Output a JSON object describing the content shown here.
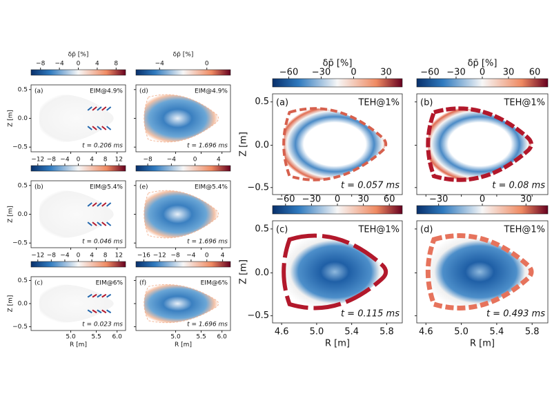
{
  "left": {
    "y_label": "Z [m]",
    "x_label": "R [m]",
    "yticks": [
      "0.5",
      "0.0",
      "−0.5"
    ],
    "xticks": [
      "5.0",
      "5.5",
      "6.0"
    ],
    "cbar_title": "δp̄ [%]",
    "panels": [
      {
        "label": "(a)",
        "tag": "EIM@4.9%",
        "time": "t = 0.206 ms",
        "cbar_ticks": [
          "−8",
          "−4",
          "0",
          "4",
          "8"
        ]
      },
      {
        "label": "(b)",
        "tag": "EIM@5.4%",
        "time": "t = 0.046 ms",
        "cbar_ticks": [
          "−12",
          "−8",
          "−4",
          "0",
          "4",
          "8",
          "12"
        ]
      },
      {
        "label": "(c)",
        "tag": "EIM@6%",
        "time": "t = 0.023 ms",
        "cbar_ticks": [
          "−12",
          "−8",
          "−4",
          "0",
          "4",
          "8",
          "12"
        ]
      },
      {
        "label": "(d)",
        "tag": "EIM@4.9%",
        "time": "t = 1.696 ms",
        "cbar_ticks": [
          "−4",
          "0"
        ]
      },
      {
        "label": "(e)",
        "tag": "EIM@5.4%",
        "time": "t = 1.696 ms",
        "cbar_ticks": [
          "−8",
          "−4",
          "0",
          "4"
        ]
      },
      {
        "label": "(f)",
        "tag": "EIM@6%",
        "time": "t = 1.696 ms",
        "cbar_ticks": [
          "−16",
          "−12",
          "−8",
          "−4",
          "0",
          "4"
        ]
      }
    ]
  },
  "right": {
    "y_label": "Z [m]",
    "x_label": "R [m]",
    "yticks": [
      "0.5",
      "0.0",
      "−0.5"
    ],
    "xticks": [
      "4.6",
      "5.0",
      "5.4",
      "5.8"
    ],
    "cbar_title": "δp̄ [%]",
    "panels": [
      {
        "label": "(a)",
        "tag": "TEH@1%",
        "time": "t = 0.057 ms",
        "cbar_ticks": [
          "−60",
          "−30",
          "0",
          "30"
        ]
      },
      {
        "label": "(b)",
        "tag": "TEH@1%",
        "time": "t = 0.08 ms",
        "cbar_ticks": [
          "−60",
          "−30",
          "0",
          "30",
          "60"
        ]
      },
      {
        "label": "(c)",
        "tag": "TEH@1%",
        "time": "t = 0.115 ms",
        "cbar_ticks": [
          "−60",
          "−30",
          "0",
          "30",
          "60"
        ]
      },
      {
        "label": "(d)",
        "tag": "TEH@1%",
        "time": "t = 0.493 ms",
        "cbar_ticks": [
          "−30",
          "0",
          "30"
        ]
      }
    ]
  }
}
